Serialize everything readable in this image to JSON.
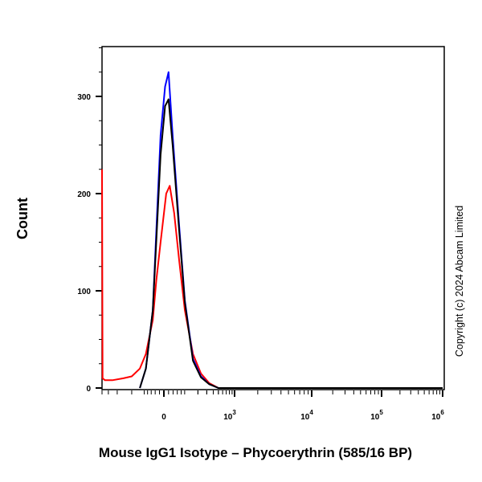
{
  "chart_data": {
    "type": "line",
    "xlabel": "Mouse IgG1 Isotype – Phycoerythrin (585/16 BP)",
    "ylabel": "Count",
    "x_scale": "biexponential",
    "ylim": [
      0,
      350
    ],
    "yticks": [
      0,
      100,
      200,
      300
    ],
    "ytick_labels": [
      "0",
      "100",
      "200",
      "300"
    ],
    "xticks": [
      {
        "value": 0,
        "base": "0",
        "exp": ""
      },
      {
        "value": 1000,
        "base": "10",
        "exp": "3"
      },
      {
        "value": 10000,
        "base": "10",
        "exp": "4"
      },
      {
        "value": 100000,
        "base": "10",
        "exp": "5"
      },
      {
        "value": 1000000,
        "base": "10",
        "exp": "6"
      }
    ],
    "grid": false,
    "annotation": "Copyright (c) 2024 Abcam Limited",
    "series": [
      {
        "color": "#ff0000",
        "x": [
          -800,
          -780,
          -700,
          -500,
          -300,
          -200,
          -130,
          -90,
          -52,
          -35,
          -15,
          10,
          25,
          45,
          70,
          101,
          157,
          230,
          334,
          500,
          1000000
        ],
        "y": [
          225,
          10,
          8,
          8,
          10,
          12,
          20,
          35,
          70,
          110,
          150,
          200,
          208,
          180,
          130,
          80,
          35,
          15,
          5,
          0,
          0
        ]
      },
      {
        "color": "#0000ff",
        "x": [
          -130,
          -90,
          -52,
          -35,
          -15,
          5,
          20,
          38,
          70,
          101,
          157,
          230,
          334,
          500,
          1000000
        ],
        "y": [
          0,
          20,
          80,
          160,
          260,
          310,
          325,
          260,
          165,
          90,
          30,
          12,
          4,
          0,
          0
        ]
      },
      {
        "color": "#000000",
        "x": [
          -130,
          -90,
          -52,
          -35,
          -15,
          5,
          20,
          38,
          70,
          101,
          157,
          230,
          334,
          500,
          1000000
        ],
        "y": [
          0,
          20,
          80,
          150,
          240,
          290,
          297,
          250,
          160,
          88,
          28,
          11,
          4,
          0,
          0
        ]
      }
    ]
  }
}
